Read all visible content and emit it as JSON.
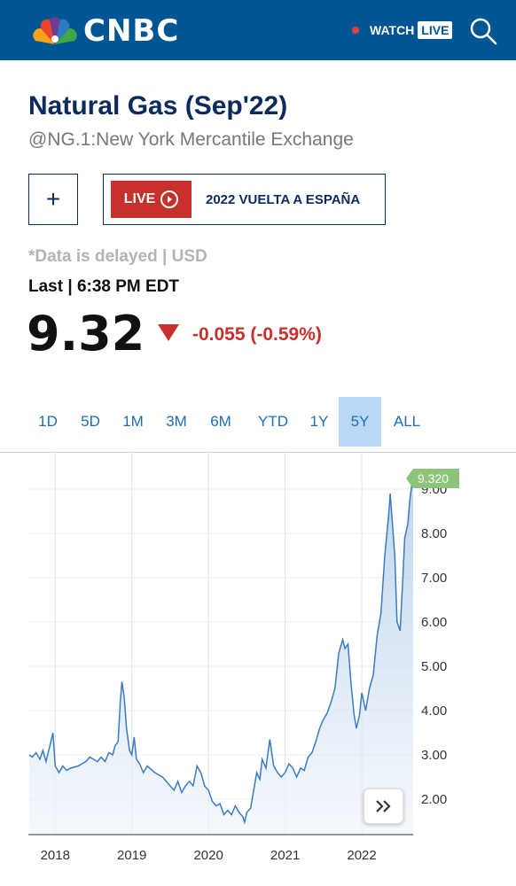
{
  "header": {
    "brand": "CNBC",
    "watch_label": "WATCH",
    "live_label": "LIVE"
  },
  "quote": {
    "title": "Natural Gas (Sep'22)",
    "exchange": "@NG.1:New York Mercantile Exchange",
    "add_label": "+",
    "live_tag": "LIVE",
    "live_title": "2022 VUELTA A ESPAÑA",
    "delayed": "*Data is delayed | USD",
    "last": "Last | 6:38 PM EDT",
    "price": "9.32",
    "change": "-0.055 (-0.59%)"
  },
  "tabs": [
    "1D",
    "5D",
    "1M",
    "3M",
    "6M",
    "YTD",
    "1Y",
    "5Y",
    "ALL"
  ],
  "active_tab": "5Y",
  "colors": {
    "brand_blue": "#005594",
    "title_navy": "#0c2a5c",
    "negative": "#c8302c",
    "line": "#3b7cc0",
    "latest_tag": "#8cc47a"
  },
  "chart_data": {
    "type": "area",
    "x_ticks": [
      "2018",
      "2019",
      "2020",
      "2021",
      "2022"
    ],
    "y_ticks": [
      "2.00",
      "3.00",
      "4.00",
      "5.00",
      "6.00",
      "7.00",
      "8.00",
      "9.00"
    ],
    "ylim": [
      1.2,
      9.8
    ],
    "xlim": [
      2017.65,
      2022.67
    ],
    "latest_label": "9.320",
    "grid": true,
    "series": [
      {
        "values": [
          [
            2017.66,
            3.0
          ],
          [
            2017.7,
            2.95
          ],
          [
            2017.75,
            3.05
          ],
          [
            2017.8,
            2.9
          ],
          [
            2017.84,
            3.1
          ],
          [
            2017.88,
            2.85
          ],
          [
            2017.93,
            3.2
          ],
          [
            2017.97,
            3.5
          ],
          [
            2018.0,
            2.75
          ],
          [
            2018.05,
            2.6
          ],
          [
            2018.1,
            2.75
          ],
          [
            2018.15,
            2.65
          ],
          [
            2018.2,
            2.7
          ],
          [
            2018.3,
            2.75
          ],
          [
            2018.4,
            2.85
          ],
          [
            2018.45,
            2.95
          ],
          [
            2018.5,
            2.9
          ],
          [
            2018.55,
            2.85
          ],
          [
            2018.6,
            2.95
          ],
          [
            2018.65,
            2.85
          ],
          [
            2018.7,
            3.05
          ],
          [
            2018.75,
            3.0
          ],
          [
            2018.78,
            3.2
          ],
          [
            2018.82,
            3.3
          ],
          [
            2018.85,
            4.2
          ],
          [
            2018.87,
            4.65
          ],
          [
            2018.9,
            4.3
          ],
          [
            2018.93,
            3.6
          ],
          [
            2018.97,
            3.1
          ],
          [
            2019.0,
            3.0
          ],
          [
            2019.03,
            3.4
          ],
          [
            2019.06,
            2.9
          ],
          [
            2019.1,
            2.8
          ],
          [
            2019.15,
            2.6
          ],
          [
            2019.2,
            2.75
          ],
          [
            2019.3,
            2.6
          ],
          [
            2019.4,
            2.5
          ],
          [
            2019.5,
            2.3
          ],
          [
            2019.55,
            2.2
          ],
          [
            2019.6,
            2.4
          ],
          [
            2019.65,
            2.15
          ],
          [
            2019.7,
            2.3
          ],
          [
            2019.75,
            2.4
          ],
          [
            2019.8,
            2.3
          ],
          [
            2019.85,
            2.75
          ],
          [
            2019.9,
            2.6
          ],
          [
            2019.95,
            2.3
          ],
          [
            2020.0,
            2.2
          ],
          [
            2020.05,
            1.95
          ],
          [
            2020.1,
            1.85
          ],
          [
            2020.15,
            1.9
          ],
          [
            2020.2,
            1.65
          ],
          [
            2020.25,
            1.75
          ],
          [
            2020.3,
            1.65
          ],
          [
            2020.35,
            1.85
          ],
          [
            2020.4,
            1.7
          ],
          [
            2020.45,
            1.6
          ],
          [
            2020.47,
            1.48
          ],
          [
            2020.5,
            1.7
          ],
          [
            2020.55,
            1.8
          ],
          [
            2020.6,
            2.3
          ],
          [
            2020.63,
            2.6
          ],
          [
            2020.67,
            2.45
          ],
          [
            2020.7,
            2.9
          ],
          [
            2020.75,
            2.7
          ],
          [
            2020.8,
            3.35
          ],
          [
            2020.85,
            2.75
          ],
          [
            2020.9,
            2.6
          ],
          [
            2020.95,
            2.5
          ],
          [
            2021.0,
            2.6
          ],
          [
            2021.05,
            2.8
          ],
          [
            2021.1,
            2.7
          ],
          [
            2021.15,
            2.5
          ],
          [
            2021.2,
            2.7
          ],
          [
            2021.25,
            2.65
          ],
          [
            2021.3,
            2.95
          ],
          [
            2021.35,
            3.05
          ],
          [
            2021.4,
            3.3
          ],
          [
            2021.45,
            3.6
          ],
          [
            2021.5,
            3.8
          ],
          [
            2021.55,
            3.95
          ],
          [
            2021.6,
            4.2
          ],
          [
            2021.65,
            4.5
          ],
          [
            2021.7,
            5.3
          ],
          [
            2021.75,
            5.6
          ],
          [
            2021.78,
            5.4
          ],
          [
            2021.82,
            5.5
          ],
          [
            2021.86,
            4.6
          ],
          [
            2021.9,
            3.9
          ],
          [
            2021.93,
            3.6
          ],
          [
            2021.97,
            3.9
          ],
          [
            2022.0,
            4.4
          ],
          [
            2022.05,
            4.0
          ],
          [
            2022.1,
            4.5
          ],
          [
            2022.15,
            4.8
          ],
          [
            2022.2,
            5.7
          ],
          [
            2022.25,
            6.2
          ],
          [
            2022.3,
            7.5
          ],
          [
            2022.35,
            8.4
          ],
          [
            2022.37,
            8.9
          ],
          [
            2022.4,
            8.2
          ],
          [
            2022.43,
            7.5
          ],
          [
            2022.46,
            6.0
          ],
          [
            2022.5,
            5.8
          ],
          [
            2022.53,
            6.8
          ],
          [
            2022.56,
            7.9
          ],
          [
            2022.6,
            8.2
          ],
          [
            2022.63,
            8.8
          ],
          [
            2022.67,
            9.32
          ]
        ]
      }
    ]
  }
}
